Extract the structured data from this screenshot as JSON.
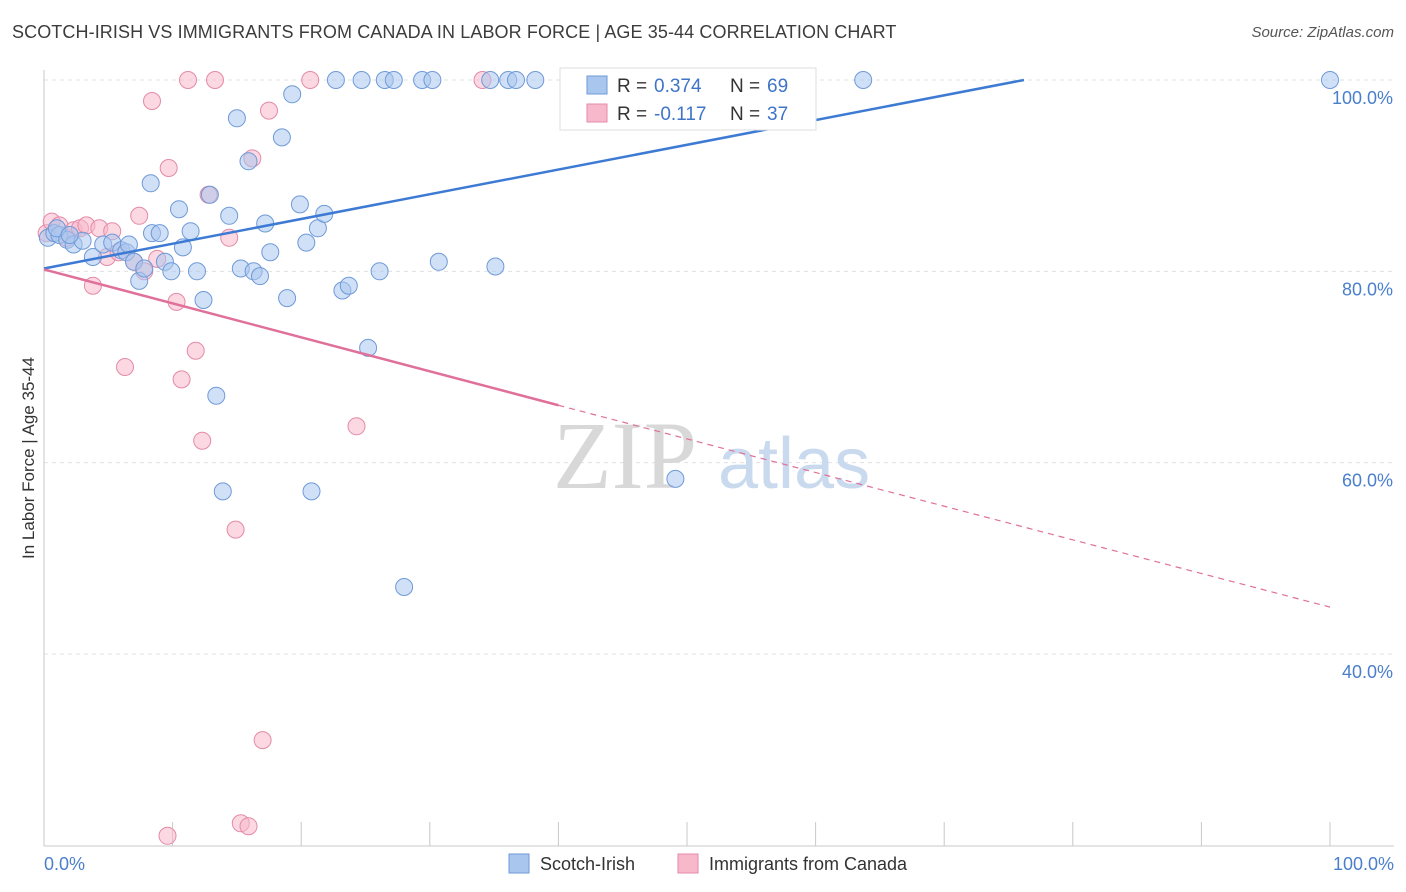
{
  "header": {
    "title": "SCOTCH-IRISH VS IMMIGRANTS FROM CANADA IN LABOR FORCE | AGE 35-44 CORRELATION CHART",
    "source": "Source: ZipAtlas.com"
  },
  "watermark": {
    "zip": "ZIP",
    "atlas": "atlas"
  },
  "legend": {
    "r_label": "R =",
    "n_label": "N =",
    "rows": [
      {
        "r": "0.374",
        "n": "69",
        "color": "#a9c6ee"
      },
      {
        "r": "-0.117",
        "n": "37",
        "color": "#f7b8cb"
      }
    ]
  },
  "bottom_legend": [
    {
      "label": "Scotch-Irish",
      "color": "#a9c6ee"
    },
    {
      "label": "Immigrants from Canada",
      "color": "#f7b8cb"
    }
  ],
  "chart_data": {
    "type": "scatter",
    "title": "SCOTCH-IRISH VS IMMIGRANTS FROM CANADA IN LABOR FORCE | AGE 35-44 CORRELATION CHART",
    "xlabel": "",
    "ylabel": "In Labor Force | Age 35-44",
    "xlim": [
      0,
      100
    ],
    "ylim": [
      21,
      101
    ],
    "x_tick_labels": [
      "0.0%",
      "100.0%"
    ],
    "y_ticks": [
      100,
      80,
      60,
      40
    ],
    "y_tick_labels": [
      "100.0%",
      "80.0%",
      "60.0%",
      "40.0%"
    ],
    "grid": true,
    "colors": {
      "blue": "#3d7ad4",
      "pink": "#e0709a"
    },
    "series": [
      {
        "name": "Scotch-Irish",
        "color": "#a9c6ee",
        "stroke": "#6f9ad8",
        "trend": {
          "x": [
            0,
            76.2
          ],
          "y": [
            80.3,
            100
          ]
        },
        "points": [
          [
            0.3,
            83.5
          ],
          [
            0.8,
            84.0
          ],
          [
            1.2,
            83.8
          ],
          [
            1.8,
            83.3
          ],
          [
            2.3,
            82.8
          ],
          [
            3.0,
            83.2
          ],
          [
            3.8,
            81.5
          ],
          [
            4.6,
            82.8
          ],
          [
            5.3,
            83.0
          ],
          [
            6.0,
            82.2
          ],
          [
            6.4,
            82.0
          ],
          [
            6.6,
            82.8
          ],
          [
            7.0,
            81.0
          ],
          [
            7.4,
            79.0
          ],
          [
            7.8,
            80.3
          ],
          [
            8.4,
            84.0
          ],
          [
            8.3,
            89.2
          ],
          [
            9.0,
            84.0
          ],
          [
            9.4,
            81.0
          ],
          [
            9.9,
            80.0
          ],
          [
            10.5,
            86.5
          ],
          [
            10.8,
            82.5
          ],
          [
            11.4,
            84.2
          ],
          [
            11.9,
            80.0
          ],
          [
            12.4,
            77.0
          ],
          [
            12.9,
            88.0
          ],
          [
            13.4,
            67.0
          ],
          [
            13.9,
            57.0
          ],
          [
            14.4,
            85.8
          ],
          [
            15.0,
            96.0
          ],
          [
            15.3,
            80.3
          ],
          [
            15.9,
            91.5
          ],
          [
            16.3,
            80.0
          ],
          [
            16.8,
            79.5
          ],
          [
            17.2,
            85.0
          ],
          [
            17.6,
            82.0
          ],
          [
            18.5,
            94.0
          ],
          [
            18.9,
            77.2
          ],
          [
            19.3,
            98.5
          ],
          [
            19.9,
            87.0
          ],
          [
            20.4,
            83.0
          ],
          [
            20.8,
            57.0
          ],
          [
            21.3,
            84.5
          ],
          [
            21.8,
            86.0
          ],
          [
            22.7,
            100.0
          ],
          [
            23.2,
            78.0
          ],
          [
            23.7,
            78.5
          ],
          [
            24.7,
            100.0
          ],
          [
            25.2,
            72.0
          ],
          [
            26.1,
            80.0
          ],
          [
            26.5,
            100.0
          ],
          [
            27.2,
            100.0
          ],
          [
            28.0,
            47.0
          ],
          [
            29.4,
            100.0
          ],
          [
            30.2,
            100.0
          ],
          [
            30.7,
            81.0
          ],
          [
            34.7,
            100.0
          ],
          [
            35.1,
            80.5
          ],
          [
            36.1,
            100.0
          ],
          [
            36.7,
            100.0
          ],
          [
            38.2,
            100.0
          ],
          [
            44.8,
            100.0
          ],
          [
            49.1,
            58.3
          ],
          [
            53.2,
            100.0
          ],
          [
            57.0,
            100.0
          ],
          [
            63.7,
            100.0
          ],
          [
            100.0,
            100.0
          ],
          [
            1.0,
            84.5
          ],
          [
            2.0,
            83.8
          ]
        ]
      },
      {
        "name": "Immigrants from Canada",
        "color": "#f7b8cb",
        "stroke": "#e48aa8",
        "trend": {
          "x": [
            0,
            40
          ],
          "y": [
            80.2,
            66.0
          ]
        },
        "trend_dashed": {
          "x": [
            40,
            100
          ],
          "y": [
            66.0,
            44.9
          ]
        },
        "points": [
          [
            0.2,
            84.0
          ],
          [
            0.6,
            85.2
          ],
          [
            1.2,
            84.8
          ],
          [
            1.8,
            83.5
          ],
          [
            2.3,
            84.3
          ],
          [
            2.8,
            84.5
          ],
          [
            3.3,
            84.8
          ],
          [
            3.8,
            78.5
          ],
          [
            4.3,
            84.5
          ],
          [
            4.9,
            81.5
          ],
          [
            5.3,
            84.2
          ],
          [
            5.8,
            82.0
          ],
          [
            6.3,
            70.0
          ],
          [
            7.0,
            81.0
          ],
          [
            7.4,
            85.8
          ],
          [
            7.8,
            80.0
          ],
          [
            8.4,
            97.8
          ],
          [
            8.8,
            81.3
          ],
          [
            9.6,
            21.0
          ],
          [
            9.7,
            90.8
          ],
          [
            10.3,
            76.8
          ],
          [
            10.7,
            68.7
          ],
          [
            11.2,
            100.0
          ],
          [
            11.8,
            71.7
          ],
          [
            12.3,
            62.3
          ],
          [
            12.8,
            88.0
          ],
          [
            13.3,
            100.0
          ],
          [
            14.4,
            83.5
          ],
          [
            14.9,
            53.0
          ],
          [
            15.3,
            22.3
          ],
          [
            15.9,
            22.0
          ],
          [
            16.2,
            91.8
          ],
          [
            17.0,
            31.0
          ],
          [
            17.5,
            96.8
          ],
          [
            20.7,
            100.0
          ],
          [
            24.3,
            63.8
          ],
          [
            34.1,
            100.0
          ]
        ]
      }
    ]
  }
}
